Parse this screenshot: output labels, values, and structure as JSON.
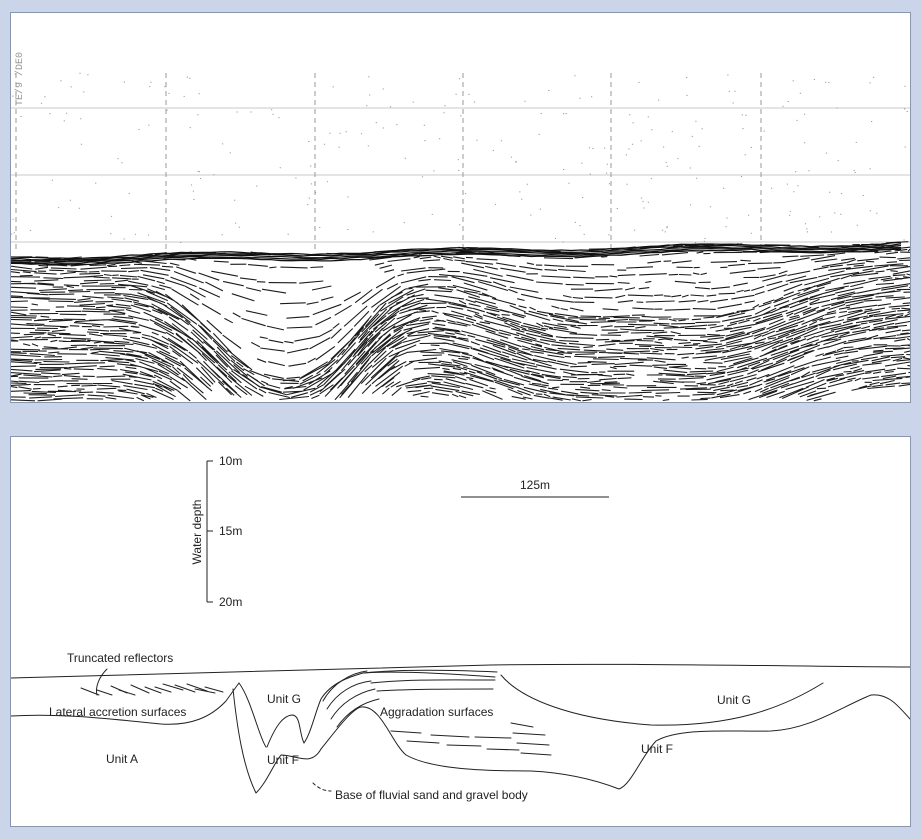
{
  "seismic": {
    "rotated_stamp": "TE/9 /DE0"
  },
  "scale": {
    "depth_axis_label": "Water depth",
    "depth_ticks": [
      "10m",
      "15m",
      "20m"
    ],
    "horizontal_label": "125m"
  },
  "labels": {
    "truncated": "Truncated reflectors",
    "lateral": "Lateral accretion surfaces",
    "unit_a": "Unit A",
    "unit_g_left": "Unit G",
    "unit_f_left": "Unit F",
    "aggradation": "Aggradation surfaces",
    "unit_g_right": "Unit G",
    "unit_f_right": "Unit F",
    "base": "Base of fluvial sand and gravel body"
  },
  "colors": {
    "background": "#cbd5ea",
    "panel": "#ffffff",
    "ink": "#222222"
  }
}
